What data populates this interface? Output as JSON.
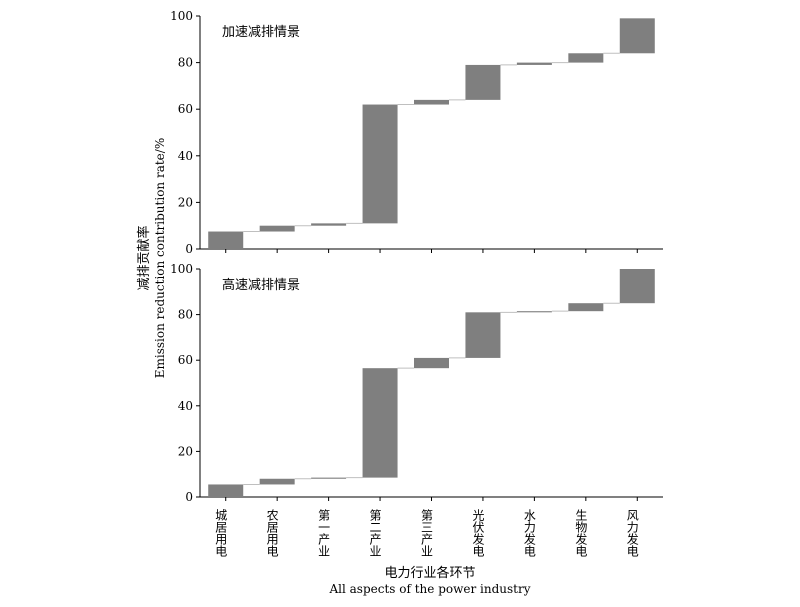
{
  "ylabel_cn": "减排贡献率",
  "ylabel_en": "Emission reduction contribution rate/%",
  "xlabel_cn": "电力行业各环节",
  "xlabel_en": "All aspects of the power industry",
  "colors": {
    "bar": "#7f7f7f",
    "connector": "#bfbfbf",
    "axis": "#000000"
  },
  "chart_data": [
    {
      "type": "bar",
      "subtype": "waterfall",
      "title": "加速减排情景",
      "ylim": [
        0,
        100
      ],
      "yticks": [
        0,
        20,
        40,
        60,
        80,
        100
      ],
      "categories": [
        "城居用电",
        "农居用电",
        "第一产业",
        "第二产业",
        "第三产业",
        "光伏发电",
        "水力发电",
        "生物发电",
        "风力发电"
      ],
      "values": [
        7.5,
        2.5,
        1.0,
        51.0,
        2.0,
        15.0,
        1.0,
        4.0,
        15.0
      ]
    },
    {
      "type": "bar",
      "subtype": "waterfall",
      "title": "高速减排情景",
      "ylim": [
        0,
        100
      ],
      "yticks": [
        0,
        20,
        40,
        60,
        80,
        100
      ],
      "categories": [
        "城居用电",
        "农居用电",
        "第一产业",
        "第二产业",
        "第三产业",
        "光伏发电",
        "水力发电",
        "生物发电",
        "风力发电"
      ],
      "values": [
        5.5,
        2.5,
        0.5,
        48.0,
        4.5,
        20.0,
        0.5,
        3.5,
        15.0
      ]
    }
  ]
}
